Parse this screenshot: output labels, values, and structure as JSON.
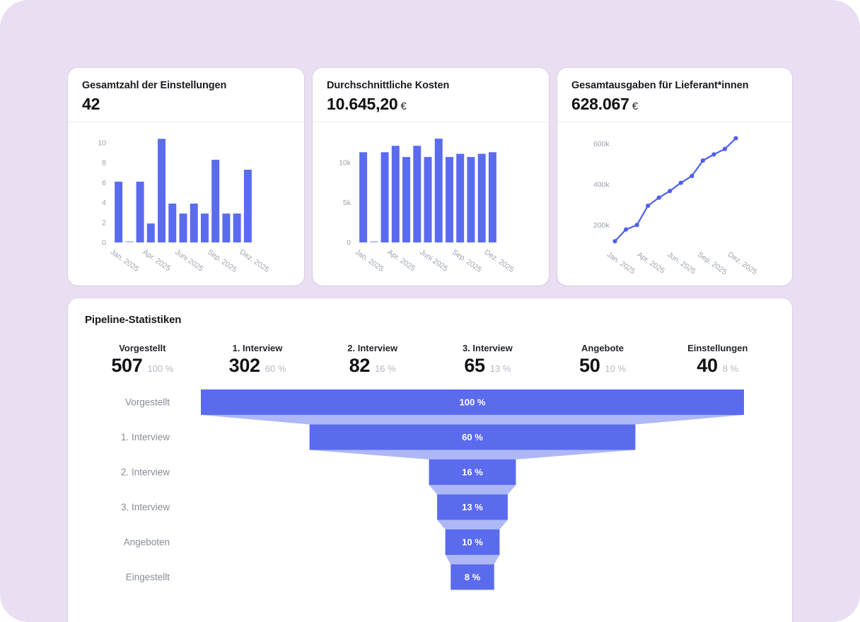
{
  "page": {
    "canvas_color": "#e9def2",
    "accent_color": "#5b6bee",
    "accent_light": "#aab5f6",
    "line_color": "#4e5ef0"
  },
  "cards": [
    {
      "title": "Gesamtzahl der Einstellungen",
      "value": "42",
      "suffix": "",
      "chart_data": {
        "type": "bar",
        "values": [
          6.1,
          0.1,
          6.1,
          1.9,
          10.4,
          3.9,
          2.9,
          3.9,
          2.9,
          8.3,
          2.9,
          2.9,
          7.3
        ],
        "y_ticks": [
          {
            "v": 0,
            "label": "0"
          },
          {
            "v": 2,
            "label": "2"
          },
          {
            "v": 4,
            "label": "4"
          },
          {
            "v": 6,
            "label": "6"
          },
          {
            "v": 8,
            "label": "8"
          },
          {
            "v": 10,
            "label": "10"
          }
        ],
        "x_labels": [
          "Jan. 2025",
          "Apr. 2025",
          "Juni 2025",
          "Sep. 2025",
          "Dez. 2025"
        ],
        "ylim": [
          0,
          10.5
        ],
        "grid": false,
        "color": "#5b6bee",
        "zero_color": "#aab5f6"
      }
    },
    {
      "title": "Durchschnittliche Kosten",
      "value": "10.645,20",
      "suffix": "€",
      "chart_data": {
        "type": "bar",
        "values": [
          11300,
          150,
          11300,
          12100,
          10700,
          12100,
          10700,
          13000,
          10700,
          11100,
          10700,
          11100,
          11300
        ],
        "y_ticks": [
          {
            "v": 0,
            "label": "0"
          },
          {
            "v": 5000,
            "label": "5k"
          },
          {
            "v": 10000,
            "label": "10k"
          }
        ],
        "x_labels": [
          "Jan. 2025",
          "Apr. 2025",
          "Juni 2025",
          "Sep. 2025",
          "Dez. 2025"
        ],
        "ylim": [
          0,
          13100
        ],
        "grid": false,
        "color": "#5b6bee",
        "zero_color": "#aab5f6"
      }
    },
    {
      "title": "Gesamtausgaben für Lieferant*innen",
      "value": "628.067",
      "suffix": "€",
      "chart_data": {
        "type": "line",
        "values": [
          120000,
          178000,
          200000,
          295000,
          335000,
          368000,
          408000,
          442000,
          518000,
          548000,
          575000,
          628000
        ],
        "y_ticks": [
          {
            "v": 200000,
            "label": "200k"
          },
          {
            "v": 400000,
            "label": "400k"
          },
          {
            "v": 600000,
            "label": "600k"
          }
        ],
        "x_labels": [
          "Jan. 2025",
          "Apr. 2025",
          "Jun. 2025",
          "Sep. 2025",
          "Dez. 2025"
        ],
        "grid": false,
        "color": "#4e5ef0"
      }
    }
  ],
  "pipeline": {
    "title": "Pipeline-Statistiken",
    "stats": [
      {
        "label": "Vorgestellt",
        "value": "507",
        "percent": "100 %"
      },
      {
        "label": "1. Interview",
        "value": "302",
        "percent": "60 %"
      },
      {
        "label": "2. Interview",
        "value": "82",
        "percent": "16 %"
      },
      {
        "label": "3. Interview",
        "value": "65",
        "percent": "13 %"
      },
      {
        "label": "Angebote",
        "value": "50",
        "percent": "10 %"
      },
      {
        "label": "Einstellungen",
        "value": "40",
        "percent": "8 %"
      }
    ],
    "funnel": {
      "type": "funnel",
      "rows": [
        {
          "label": "Vorgestellt",
          "percent": 100,
          "percent_label": "100 %"
        },
        {
          "label": "1. Interview",
          "percent": 60,
          "percent_label": "60 %"
        },
        {
          "label": "2. Interview",
          "percent": 16,
          "percent_label": "16 %"
        },
        {
          "label": "3. Interview",
          "percent": 13,
          "percent_label": "13 %"
        },
        {
          "label": "Angeboten",
          "percent": 10,
          "percent_label": "10 %"
        },
        {
          "label": "Eingestellt",
          "percent": 8,
          "percent_label": "8 %"
        }
      ],
      "bar_color": "#5b6bee",
      "connector_color": "#aeb8f7"
    }
  }
}
